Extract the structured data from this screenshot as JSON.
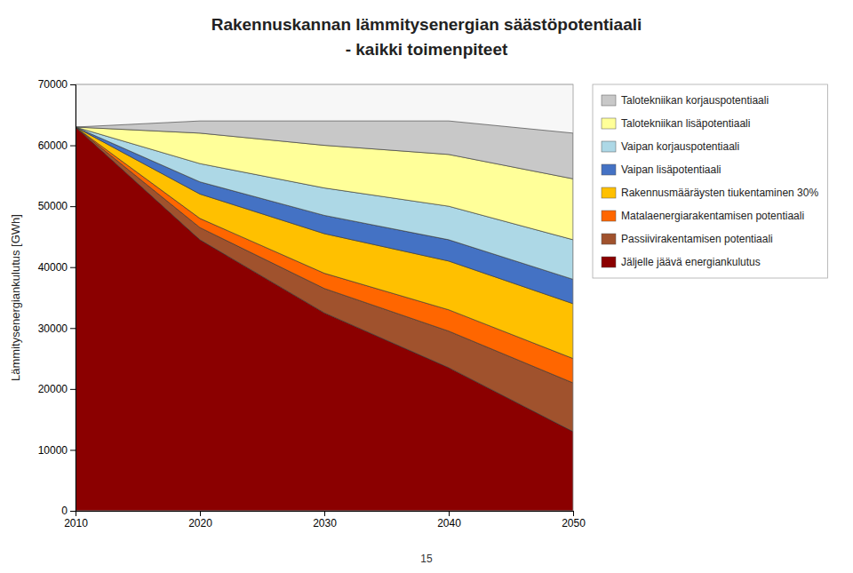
{
  "chart_data": {
    "type": "area",
    "stacked": true,
    "title": "Rakennuskannan lämmitysenergian säästöpotentiaali",
    "subtitle": "- kaikki toimenpiteet",
    "y_label": "Lämmitysenergiankulutus [GWh]",
    "x": [
      2010,
      2020,
      2030,
      2040,
      2050
    ],
    "xlim": [
      2010,
      2050
    ],
    "xticks": [
      2010,
      2020,
      2030,
      2040,
      2050
    ],
    "ylim": [
      0,
      70000
    ],
    "yticks": [
      0,
      10000,
      20000,
      30000,
      40000,
      50000,
      60000,
      70000
    ],
    "grid": true,
    "legend": "right",
    "series": [
      {
        "name": "Jäljelle jäävä energiankulutus",
        "color": "#8b0000",
        "values": [
          63000,
          44500,
          32500,
          23500,
          13000
        ]
      },
      {
        "name": "Passiivirakentamisen potentiaali",
        "color": "#a0522d",
        "values": [
          0,
          2000,
          4000,
          6000,
          8000
        ]
      },
      {
        "name": "Matalaenergiarakentamisen potentiaali",
        "color": "#ff6600",
        "values": [
          0,
          1500,
          2500,
          3500,
          4000
        ]
      },
      {
        "name": "Rakennusmääräysten tiukentaminen 30%",
        "color": "#ffc000",
        "values": [
          0,
          4000,
          6500,
          8000,
          9000
        ]
      },
      {
        "name": "Vaipan lisäpotentiaali",
        "color": "#4472c4",
        "values": [
          0,
          2000,
          3000,
          3500,
          4000
        ]
      },
      {
        "name": "Vaipan korjauspotentiaali",
        "color": "#add8e6",
        "values": [
          0,
          3000,
          4500,
          5500,
          6500
        ]
      },
      {
        "name": "Talotekniikan lisäpotentiaali",
        "color": "#ffff99",
        "values": [
          0,
          5000,
          7000,
          8500,
          10000
        ]
      },
      {
        "name": "Talotekniikan korjauspotentiaali",
        "color": "#c8c8c8",
        "values": [
          0,
          2000,
          4000,
          5500,
          7500
        ]
      }
    ],
    "annotations": [
      "15"
    ]
  }
}
